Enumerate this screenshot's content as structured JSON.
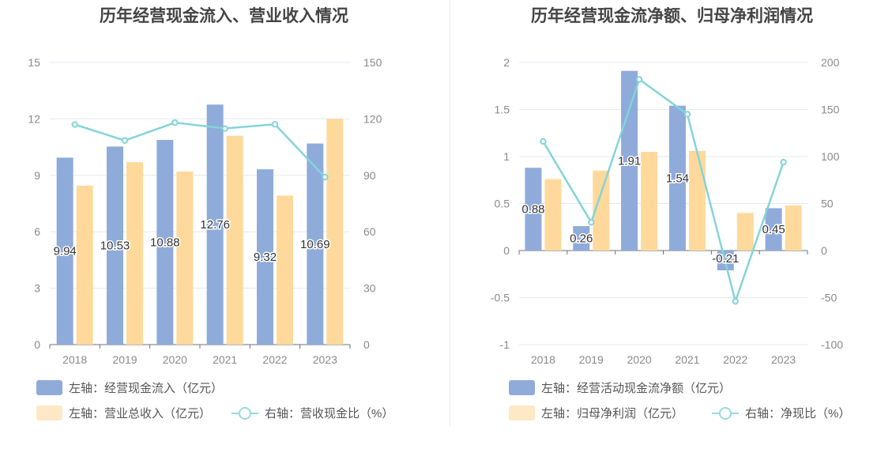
{
  "colors": {
    "bar_primary": "#8eabda",
    "bar_secondary": "#fed99b",
    "line": "#84d4d8",
    "legend_secondary": "#fee8c6",
    "legend_line": "#9ad9de"
  },
  "chart_data": [
    {
      "type": "bar",
      "title": "历年经营现金流入、营业收入情况",
      "categories": [
        "2018",
        "2019",
        "2020",
        "2021",
        "2022",
        "2023"
      ],
      "left_axis": {
        "min": 0,
        "max": 15,
        "ticks": [
          "0",
          "3",
          "6",
          "9",
          "12",
          "15"
        ]
      },
      "right_axis": {
        "min": 0,
        "max": 150,
        "ticks": [
          "0",
          "30",
          "60",
          "90",
          "120",
          "150"
        ]
      },
      "series": [
        {
          "name": "左轴：经营现金流入（亿元）",
          "kind": "bar",
          "axis": "left",
          "values": [
            9.94,
            10.53,
            10.88,
            12.76,
            9.32,
            10.69
          ],
          "labels": [
            "9.94",
            "10.53",
            "10.88",
            "12.76",
            "9.32",
            "10.69"
          ]
        },
        {
          "name": "左轴：营业总收入（亿元）",
          "kind": "bar",
          "axis": "left",
          "values": [
            8.45,
            9.7,
            9.2,
            11.1,
            7.92,
            12.0
          ]
        },
        {
          "name": "右轴：营收现金比（%）",
          "kind": "line",
          "axis": "right",
          "values": [
            117.0,
            108.5,
            118.0,
            114.9,
            117.1,
            89.0
          ]
        }
      ],
      "legend": [
        "左轴：经营现金流入（亿元）",
        "左轴：营业总收入（亿元）",
        "右轴：营收现金比（%）"
      ],
      "legend_position": "bottom-left",
      "grid": true
    },
    {
      "type": "bar",
      "title": "历年经营现金流净额、归母净利润情况",
      "categories": [
        "2018",
        "2019",
        "2020",
        "2021",
        "2022",
        "2023"
      ],
      "left_axis": {
        "min": -1,
        "max": 2,
        "ticks": [
          "-1",
          "-0.5",
          "0",
          "0.5",
          "1",
          "1.5",
          "2"
        ]
      },
      "right_axis": {
        "min": -100,
        "max": 200,
        "ticks": [
          "-100",
          "-50",
          "0",
          "50",
          "100",
          "150",
          "200"
        ]
      },
      "series": [
        {
          "name": "左轴：经营活动现金流净额（亿元）",
          "kind": "bar",
          "axis": "left",
          "values": [
            0.88,
            0.26,
            1.91,
            1.54,
            -0.21,
            0.45
          ],
          "labels": [
            "0.88",
            "0.26",
            "1.91",
            "1.54",
            "-0.21",
            "0.45"
          ]
        },
        {
          "name": "左轴：归母净利润（亿元）",
          "kind": "bar",
          "axis": "left",
          "values": [
            0.76,
            0.85,
            1.05,
            1.06,
            0.4,
            0.48
          ]
        },
        {
          "name": "右轴：净现比（%）",
          "kind": "line",
          "axis": "right",
          "values": [
            116.0,
            30.0,
            182.0,
            145.0,
            -54.0,
            94.0
          ]
        }
      ],
      "legend": [
        "左轴：经营活动现金流净额（亿元）",
        "左轴：归母净利润（亿元）",
        "右轴：净现比（%）"
      ],
      "legend_position": "bottom-left",
      "grid": true
    }
  ]
}
